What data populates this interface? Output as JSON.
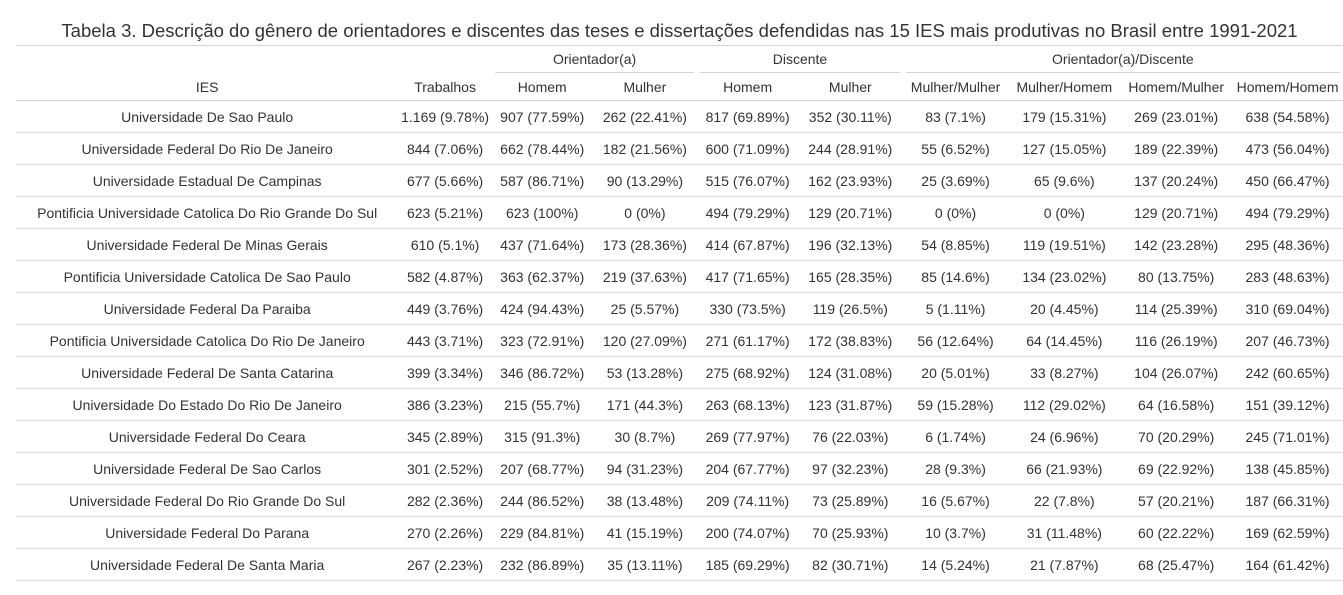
{
  "table": {
    "caption": "Tabela 3. Descrição do gênero de orientadores e discentes das teses e dissertações defendidas nas 15 IES mais produtivas no Brasil entre 1991-2021",
    "spanners": {
      "orientador": "Orientador(a)",
      "discente": "Discente",
      "orientador_discente": "Orientador(a)/Discente"
    },
    "columns": [
      "IES",
      "Trabalhos",
      "Homem",
      "Mulher",
      "Homem",
      "Mulher",
      "Mulher/Mulher",
      "Mulher/Homem",
      "Homem/Mulher",
      "Homem/Homem"
    ],
    "rows": [
      [
        "Universidade De Sao Paulo",
        "1.169 (9.78%)",
        "907 (77.59%)",
        "262 (22.41%)",
        "817 (69.89%)",
        "352 (30.11%)",
        "83 (7.1%)",
        "179 (15.31%)",
        "269 (23.01%)",
        "638 (54.58%)"
      ],
      [
        "Universidade Federal Do Rio De Janeiro",
        "844 (7.06%)",
        "662 (78.44%)",
        "182 (21.56%)",
        "600 (71.09%)",
        "244 (28.91%)",
        "55 (6.52%)",
        "127 (15.05%)",
        "189 (22.39%)",
        "473 (56.04%)"
      ],
      [
        "Universidade Estadual De Campinas",
        "677 (5.66%)",
        "587 (86.71%)",
        "90 (13.29%)",
        "515 (76.07%)",
        "162 (23.93%)",
        "25 (3.69%)",
        "65 (9.6%)",
        "137 (20.24%)",
        "450 (66.47%)"
      ],
      [
        "Pontificia Universidade Catolica Do Rio Grande Do Sul",
        "623 (5.21%)",
        "623 (100%)",
        "0 (0%)",
        "494 (79.29%)",
        "129 (20.71%)",
        "0 (0%)",
        "0 (0%)",
        "129 (20.71%)",
        "494 (79.29%)"
      ],
      [
        "Universidade Federal De Minas Gerais",
        "610 (5.1%)",
        "437 (71.64%)",
        "173 (28.36%)",
        "414 (67.87%)",
        "196 (32.13%)",
        "54 (8.85%)",
        "119 (19.51%)",
        "142 (23.28%)",
        "295 (48.36%)"
      ],
      [
        "Pontificia Universidade Catolica De Sao Paulo",
        "582 (4.87%)",
        "363 (62.37%)",
        "219 (37.63%)",
        "417 (71.65%)",
        "165 (28.35%)",
        "85 (14.6%)",
        "134 (23.02%)",
        "80 (13.75%)",
        "283 (48.63%)"
      ],
      [
        "Universidade Federal Da Paraiba",
        "449 (3.76%)",
        "424 (94.43%)",
        "25 (5.57%)",
        "330 (73.5%)",
        "119 (26.5%)",
        "5 (1.11%)",
        "20 (4.45%)",
        "114 (25.39%)",
        "310 (69.04%)"
      ],
      [
        "Pontificia Universidade Catolica Do Rio De Janeiro",
        "443 (3.71%)",
        "323 (72.91%)",
        "120 (27.09%)",
        "271 (61.17%)",
        "172 (38.83%)",
        "56 (12.64%)",
        "64 (14.45%)",
        "116 (26.19%)",
        "207 (46.73%)"
      ],
      [
        "Universidade Federal De Santa Catarina",
        "399 (3.34%)",
        "346 (86.72%)",
        "53 (13.28%)",
        "275 (68.92%)",
        "124 (31.08%)",
        "20 (5.01%)",
        "33 (8.27%)",
        "104 (26.07%)",
        "242 (60.65%)"
      ],
      [
        "Universidade Do Estado Do Rio De Janeiro",
        "386 (3.23%)",
        "215 (55.7%)",
        "171 (44.3%)",
        "263 (68.13%)",
        "123 (31.87%)",
        "59 (15.28%)",
        "112 (29.02%)",
        "64 (16.58%)",
        "151 (39.12%)"
      ],
      [
        "Universidade Federal Do Ceara",
        "345 (2.89%)",
        "315 (91.3%)",
        "30 (8.7%)",
        "269 (77.97%)",
        "76 (22.03%)",
        "6 (1.74%)",
        "24 (6.96%)",
        "70 (20.29%)",
        "245 (71.01%)"
      ],
      [
        "Universidade Federal De Sao Carlos",
        "301 (2.52%)",
        "207 (68.77%)",
        "94 (31.23%)",
        "204 (67.77%)",
        "97 (32.23%)",
        "28 (9.3%)",
        "66 (21.93%)",
        "69 (22.92%)",
        "138 (45.85%)"
      ],
      [
        "Universidade Federal Do Rio Grande Do Sul",
        "282 (2.36%)",
        "244 (86.52%)",
        "38 (13.48%)",
        "209 (74.11%)",
        "73 (25.89%)",
        "16 (5.67%)",
        "22 (7.8%)",
        "57 (20.21%)",
        "187 (66.31%)"
      ],
      [
        "Universidade Federal Do Parana",
        "270 (2.26%)",
        "229 (84.81%)",
        "41 (15.19%)",
        "200 (74.07%)",
        "70 (25.93%)",
        "10 (3.7%)",
        "31 (11.48%)",
        "60 (22.22%)",
        "169 (62.59%)"
      ],
      [
        "Universidade Federal De Santa Maria",
        "267 (2.23%)",
        "232 (86.89%)",
        "35 (13.11%)",
        "185 (69.29%)",
        "82 (30.71%)",
        "14 (5.24%)",
        "21 (7.87%)",
        "68 (25.47%)",
        "164 (61.42%)"
      ]
    ]
  }
}
